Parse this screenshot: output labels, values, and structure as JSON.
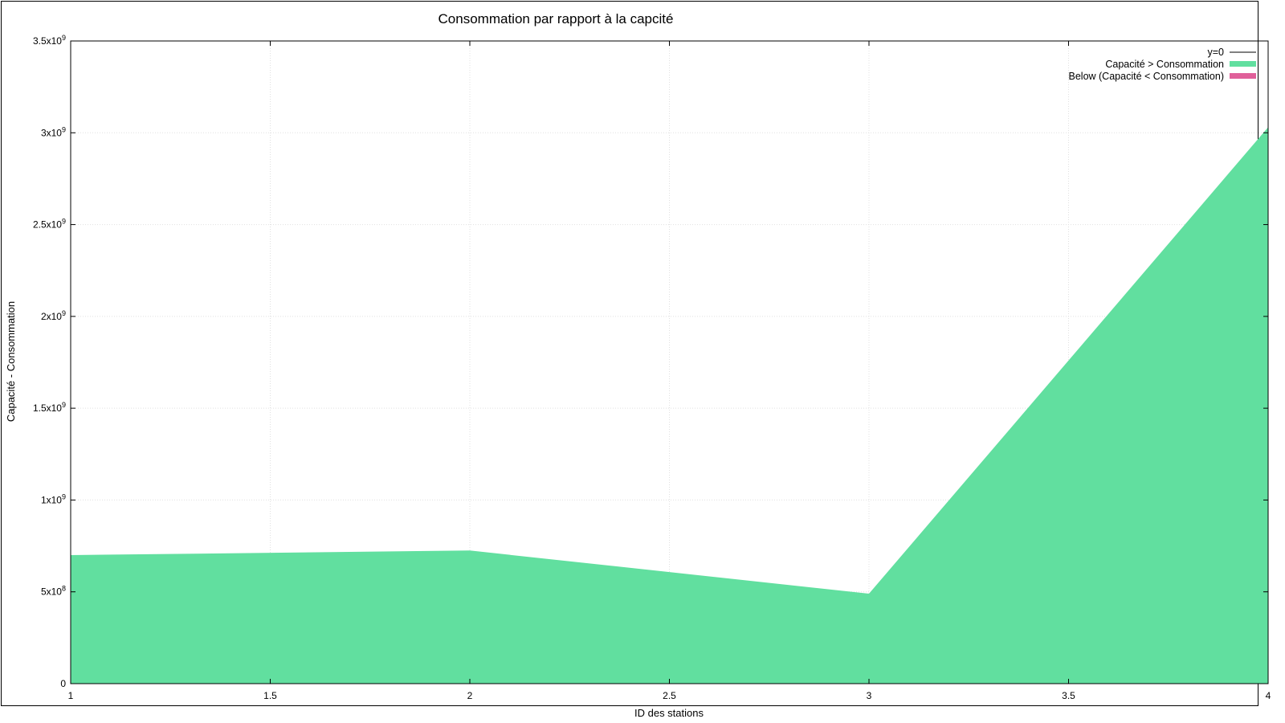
{
  "chart_data": {
    "type": "area",
    "title": "Consommation par rapport à la capcité",
    "xlabel": "ID des stations",
    "ylabel": "Capacité - Consommation",
    "xlim": [
      1,
      4
    ],
    "ylim": [
      0,
      3500000000
    ],
    "xticks": [
      {
        "value": 1,
        "label": "1"
      },
      {
        "value": 1.5,
        "label": "1.5"
      },
      {
        "value": 2,
        "label": "2"
      },
      {
        "value": 2.5,
        "label": "2.5"
      },
      {
        "value": 3,
        "label": "3"
      },
      {
        "value": 3.5,
        "label": "3.5"
      },
      {
        "value": 4,
        "label": "4"
      }
    ],
    "yticks": [
      {
        "value": 0,
        "mant": "0",
        "exp": ""
      },
      {
        "value": 500000000,
        "mant": "5x10",
        "exp": "8"
      },
      {
        "value": 1000000000,
        "mant": "1x10",
        "exp": "9"
      },
      {
        "value": 1500000000,
        "mant": "1.5x10",
        "exp": "9"
      },
      {
        "value": 2000000000,
        "mant": "2x10",
        "exp": "9"
      },
      {
        "value": 2500000000,
        "mant": "2.5x10",
        "exp": "9"
      },
      {
        "value": 3000000000,
        "mant": "3x10",
        "exp": "9"
      },
      {
        "value": 3500000000,
        "mant": "3.5x10",
        "exp": "9"
      }
    ],
    "grid": true,
    "legend_position": "top-right",
    "series": [
      {
        "name": "y=0",
        "kind": "line",
        "color": "#000000",
        "points": [
          [
            1,
            0
          ],
          [
            4,
            0
          ]
        ]
      },
      {
        "name": "Capacité > Consommation",
        "kind": "area",
        "color": "#61df9f",
        "points": [
          [
            1,
            700000000
          ],
          [
            2,
            725000000
          ],
          [
            3,
            490000000
          ],
          [
            4,
            3030000000
          ]
        ]
      },
      {
        "name": "Below (Capacité < Consommation)",
        "kind": "area",
        "color": "#e0609a",
        "points": []
      }
    ]
  }
}
